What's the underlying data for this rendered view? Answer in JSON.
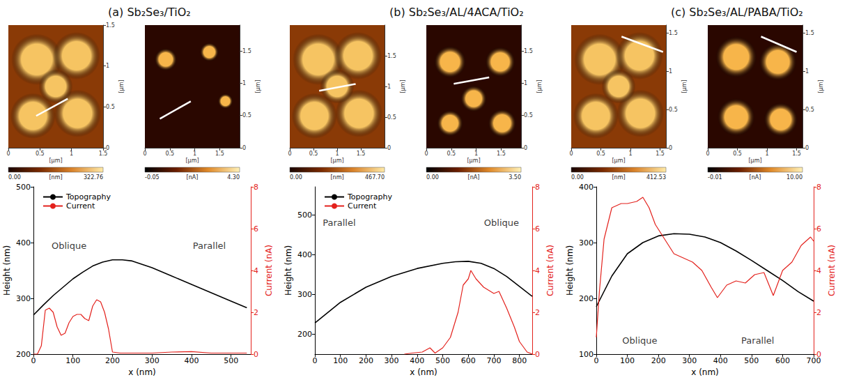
{
  "chart_data": [
    {
      "type": "figure_panel",
      "title": "(a) Sb₂Se₃/TiO₂",
      "charts": [
        {
          "type": "topography_map",
          "xlabel": "[μm]",
          "ylabel": "[μm]",
          "xlim": [
            0,
            1.5
          ],
          "ylim": [
            0,
            1.5
          ],
          "xticks": [
            0,
            0.5,
            1,
            1.5
          ],
          "yticks": [
            0,
            0.5,
            1,
            1.5
          ],
          "profile_line": {
            "x": [
              0.44,
              0.94
            ],
            "y": [
              0.39,
              0.6
            ]
          },
          "colorbar": {
            "label": "[nm]",
            "range": [
              0,
              322.76
            ],
            "ticks": [
              {
                "value": 0,
                "label": "0.00"
              },
              {
                "value": 322.76,
                "label": "322.76"
              }
            ]
          }
        },
        {
          "type": "current_map",
          "xlabel": "[μm]",
          "ylabel": "[μm]",
          "xlim": [
            0,
            1.9
          ],
          "ylim": [
            0,
            1.9
          ],
          "xticks": [
            0,
            0.5,
            1,
            1.5
          ],
          "yticks": [
            0,
            0.5,
            1,
            1.5
          ],
          "profile_line": {
            "x": [
              0.3,
              0.92
            ],
            "y": [
              0.45,
              0.72
            ]
          },
          "colorbar": {
            "label": "[nA]",
            "range": [
              -0.05,
              4.3
            ],
            "ticks": [
              {
                "value": -0.05,
                "label": "-0.05"
              },
              {
                "value": 4.3,
                "label": "4.30"
              }
            ]
          }
        },
        {
          "type": "line",
          "xlabel": "x (nm)",
          "ylabel": "Height (nm)",
          "y2label": "Current (nA)",
          "xlim": [
            0,
            550
          ],
          "xticks": [
            0,
            100,
            200,
            300,
            400,
            500
          ],
          "ylim": [
            200,
            500
          ],
          "yticks": [
            200,
            300,
            400,
            500
          ],
          "y2lim": [
            0,
            8
          ],
          "y2ticks": [
            0,
            2,
            4,
            6,
            8
          ],
          "grid": false,
          "legend": "upper left",
          "series": [
            {
              "name": "Topography",
              "color": "#000000",
              "x": [
                0,
                25,
                50,
                75,
                100,
                125,
                150,
                175,
                200,
                225,
                250,
                300,
                350,
                400,
                450,
                500,
                540
              ],
              "values": [
                270,
                288,
                305,
                320,
                335,
                347,
                358,
                365,
                369,
                369,
                367,
                355,
                340,
                325,
                310,
                295,
                283
              ]
            },
            {
              "name": "Current",
              "color": "#e3211c",
              "axis": "y2",
              "x": [
                0,
                10,
                20,
                30,
                40,
                50,
                60,
                70,
                80,
                90,
                100,
                110,
                120,
                130,
                140,
                150,
                160,
                170,
                180,
                190,
                200,
                220,
                260,
                300,
                350,
                400,
                450,
                500,
                540
              ],
              "values": [
                0,
                0,
                0.4,
                2.1,
                2.2,
                2.0,
                1.3,
                0.9,
                1.0,
                1.5,
                1.8,
                1.9,
                1.9,
                1.7,
                1.6,
                2.3,
                2.6,
                2.5,
                2.0,
                1.2,
                0.1,
                0.05,
                0.05,
                0.05,
                0.1,
                0.12,
                0.05,
                0.05,
                0.05
              ]
            }
          ],
          "annotations": [
            {
              "text": "Oblique",
              "x": 90,
              "y": 395
            },
            {
              "text": "Parallel",
              "x": 445,
              "y": 395
            }
          ]
        }
      ]
    },
    {
      "type": "figure_panel",
      "title": "(b) Sb₂Se₃/AL/4ACA/TiO₂",
      "charts": [
        {
          "type": "topography_map",
          "xlabel": "[μm]",
          "ylabel": "[μm]",
          "xlim": [
            0,
            2
          ],
          "ylim": [
            0,
            2
          ],
          "xticks": [
            0,
            0.5,
            1,
            1.5
          ],
          "yticks": [
            0,
            0.5,
            1,
            1.5
          ],
          "profile_line": {
            "x": [
              0.62,
              1.39
            ],
            "y": [
              0.93,
              1.04
            ]
          },
          "colorbar": {
            "label": "[nm]",
            "range": [
              0,
              467.7
            ],
            "ticks": [
              {
                "value": 0,
                "label": "0.00"
              },
              {
                "value": 467.7,
                "label": "467.70"
              }
            ]
          }
        },
        {
          "type": "current_map",
          "xlabel": "[μm]",
          "ylabel": "[μm]",
          "xlim": [
            0,
            1.9
          ],
          "ylim": [
            0,
            1.9
          ],
          "xticks": [
            0,
            0.5,
            1,
            1.5
          ],
          "yticks": [
            0,
            0.5,
            1,
            1.5
          ],
          "profile_line": {
            "x": [
              0.55,
              1.26
            ],
            "y": [
              0.99,
              1.09
            ]
          },
          "colorbar": {
            "label": "[nA]",
            "range": [
              0,
              3.5
            ],
            "ticks": [
              {
                "value": 0,
                "label": "0.00"
              },
              {
                "value": 3.5,
                "label": "3.50"
              }
            ]
          }
        },
        {
          "type": "line",
          "xlabel": "x (nm)",
          "ylabel": "Height (nm)",
          "y2label": "Current (nA)",
          "xlim": [
            0,
            850
          ],
          "xticks": [
            0,
            100,
            200,
            300,
            400,
            500,
            600,
            700,
            800
          ],
          "ylim": [
            150,
            570
          ],
          "yticks": [
            200,
            300,
            400,
            500
          ],
          "y2lim": [
            0,
            8
          ],
          "y2ticks": [
            0,
            2,
            4,
            6,
            8
          ],
          "grid": false,
          "legend": "upper left",
          "series": [
            {
              "name": "Topography",
              "color": "#000000",
              "x": [
                0,
                100,
                200,
                300,
                400,
                500,
                550,
                600,
                650,
                700,
                750,
                800,
                850
              ],
              "values": [
                228,
                280,
                318,
                345,
                365,
                378,
                382,
                383,
                378,
                365,
                345,
                320,
                295
              ]
            },
            {
              "name": "Current",
              "color": "#e3211c",
              "axis": "y2",
              "x": [
                350,
                380,
                420,
                450,
                470,
                500,
                530,
                560,
                580,
                600,
                610,
                630,
                660,
                700,
                720,
                750,
                780,
                800,
                830,
                850
              ],
              "values": [
                0,
                0.05,
                0.1,
                0.3,
                0.05,
                0.3,
                0.8,
                2.0,
                3.3,
                3.6,
                4.0,
                3.6,
                3.2,
                2.9,
                3.0,
                2.2,
                1.3,
                0.6,
                0.1,
                0
              ]
            }
          ],
          "annotations": [
            {
              "text": "Parallel",
              "x": 95,
              "y": 480
            },
            {
              "text": "Oblique",
              "x": 730,
              "y": 480
            }
          ]
        }
      ]
    },
    {
      "type": "figure_panel",
      "title": "(c) Sb₂Se₃/AL/PABA/TiO₂",
      "charts": [
        {
          "type": "topography_map",
          "xlabel": "[μm]",
          "ylabel": "[μm]",
          "xlim": [
            0,
            1.6
          ],
          "ylim": [
            0,
            1.6
          ],
          "xticks": [
            0,
            0.5,
            1,
            1.5
          ],
          "yticks": [
            0,
            0.5,
            1,
            1.5
          ],
          "profile_line": {
            "x": [
              0.85,
              1.55
            ],
            "y": [
              1.45,
              1.25
            ]
          },
          "colorbar": {
            "label": "[nm]",
            "range": [
              0,
              412.53
            ],
            "ticks": [
              {
                "value": 0,
                "label": "0.00"
              },
              {
                "value": 412.53,
                "label": "412.53"
              }
            ]
          }
        },
        {
          "type": "current_map",
          "xlabel": "[μm]",
          "ylabel": "[μm]",
          "xlim": [
            0,
            1.6
          ],
          "ylim": [
            0,
            1.6
          ],
          "xticks": [
            0,
            0.5,
            1,
            1.5
          ],
          "yticks": [
            0,
            0.5,
            1,
            1.5
          ],
          "profile_line": {
            "x": [
              0.9,
              1.5
            ],
            "y": [
              1.45,
              1.25
            ]
          },
          "colorbar": {
            "label": "[nA]",
            "range": [
              -0.01,
              10
            ],
            "ticks": [
              {
                "value": -0.01,
                "label": "-0.01"
              },
              {
                "value": 10,
                "label": "10.00"
              }
            ]
          }
        },
        {
          "type": "line",
          "xlabel": "x (nm)",
          "ylabel": "Height (nm)",
          "y2label": "Current (nA)",
          "xlim": [
            0,
            700
          ],
          "xticks": [
            0,
            100,
            200,
            300,
            400,
            500,
            600,
            700
          ],
          "ylim": [
            100,
            400
          ],
          "yticks": [
            100,
            200,
            300,
            400
          ],
          "y2lim": [
            0,
            8
          ],
          "y2ticks": [
            0,
            2,
            4,
            6,
            8
          ],
          "grid": false,
          "series": [
            {
              "name": "Topography",
              "color": "#000000",
              "x": [
                0,
                50,
                100,
                150,
                200,
                250,
                300,
                350,
                400,
                450,
                500,
                550,
                600,
                650,
                700
              ],
              "values": [
                185,
                240,
                280,
                300,
                312,
                316,
                315,
                310,
                300,
                285,
                268,
                250,
                232,
                212,
                195
              ]
            },
            {
              "name": "Current",
              "color": "#e3211c",
              "axis": "y2",
              "x": [
                0,
                10,
                25,
                50,
                80,
                100,
                130,
                150,
                170,
                190,
                220,
                250,
                280,
                310,
                340,
                370,
                390,
                420,
                450,
                480,
                510,
                540,
                570,
                600,
                630,
                660,
                690,
                700
              ],
              "values": [
                0.8,
                3.0,
                5.5,
                7.0,
                7.2,
                7.2,
                7.3,
                7.5,
                7.0,
                6.2,
                5.5,
                4.8,
                4.6,
                4.4,
                4.0,
                3.2,
                2.7,
                3.3,
                3.5,
                3.4,
                3.8,
                3.9,
                2.8,
                4.0,
                4.4,
                5.2,
                5.6,
                5.4
              ]
            }
          ],
          "annotations": [
            {
              "text": "Oblique",
              "x": 140,
              "y": 125
            },
            {
              "text": "Parallel",
              "x": 520,
              "y": 125
            }
          ]
        }
      ]
    }
  ]
}
